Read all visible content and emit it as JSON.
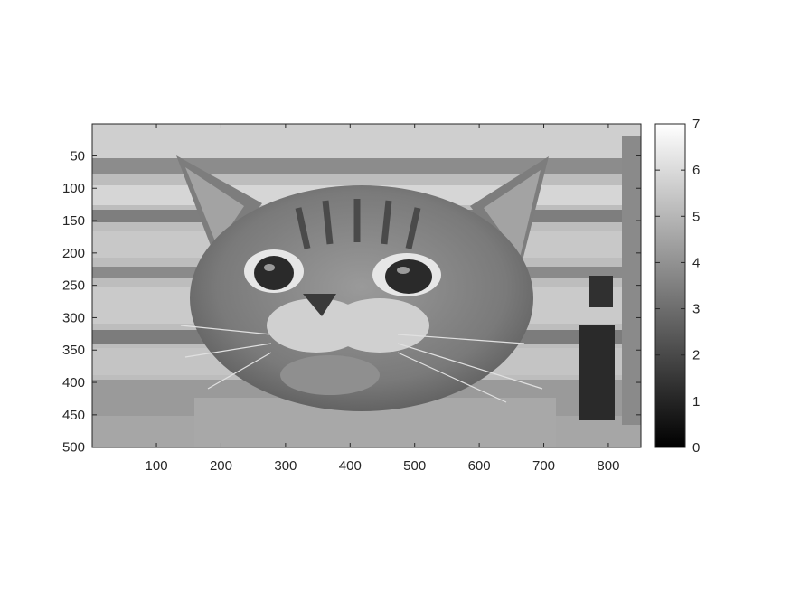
{
  "chart_data": {
    "type": "heatmap",
    "description_of_image": "grayscale indexed image of a cat looking upward, quantized into 8 gray levels",
    "colormap": "gray",
    "image_size": {
      "columns": 850,
      "rows": 500
    },
    "xlim": [
      0.5,
      850.5
    ],
    "ylim": [
      500.5,
      0.5
    ],
    "y_direction": "reversed",
    "x_ticks": [
      100,
      200,
      300,
      400,
      500,
      600,
      700,
      800
    ],
    "y_ticks": [
      50,
      100,
      150,
      200,
      250,
      300,
      350,
      400,
      450,
      500
    ],
    "colorbar": {
      "range": [
        0,
        7
      ],
      "ticks": [
        0,
        1,
        2,
        3,
        4,
        5,
        6,
        7
      ],
      "low_color": "#000000",
      "high_color": "#ffffff"
    },
    "title": "",
    "xlabel": "",
    "ylabel": ""
  }
}
